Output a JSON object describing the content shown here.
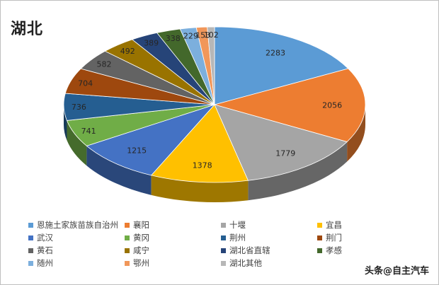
{
  "title": "湖北",
  "watermark": "头条@自主汽车",
  "chart_data": {
    "type": "pie",
    "title": "湖北",
    "legend_position": "bottom",
    "slices": [
      {
        "label": "恩施土家族苗族自治州",
        "value": 2283,
        "color": "#5b9bd5"
      },
      {
        "label": "襄阳",
        "value": 2056,
        "color": "#ed7d31"
      },
      {
        "label": "十堰",
        "value": 1779,
        "color": "#a5a5a5"
      },
      {
        "label": "宜昌",
        "value": 1378,
        "color": "#ffc000"
      },
      {
        "label": "武汉",
        "value": 1215,
        "color": "#4472c4"
      },
      {
        "label": "黄冈",
        "value": 741,
        "color": "#70ad47"
      },
      {
        "label": "荆州",
        "value": 736,
        "color": "#255e91"
      },
      {
        "label": "荆门",
        "value": 704,
        "color": "#9e480e"
      },
      {
        "label": "黄石",
        "value": 582,
        "color": "#636363"
      },
      {
        "label": "咸宁",
        "value": 492,
        "color": "#997300"
      },
      {
        "label": "湖北省直辖",
        "value": 389,
        "color": "#264478"
      },
      {
        "label": "孝感",
        "value": 338,
        "color": "#43682b"
      },
      {
        "label": "随州",
        "value": 229,
        "color": "#7cafdd"
      },
      {
        "label": "鄂州",
        "value": 153,
        "color": "#f1975a"
      },
      {
        "label": "湖北其他",
        "value": 102,
        "color": "#b7b7b7"
      }
    ]
  }
}
